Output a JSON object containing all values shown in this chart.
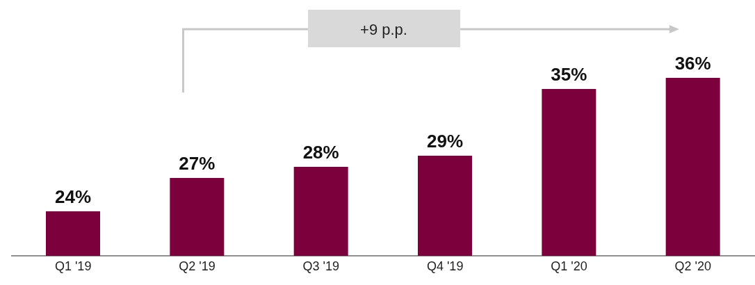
{
  "chart_data": {
    "type": "bar",
    "categories": [
      "Q1 '19",
      "Q2 '19",
      "Q3 '19",
      "Q4 '19",
      "Q1 '20",
      "Q2 '20"
    ],
    "values": [
      24,
      27,
      28,
      29,
      35,
      36
    ],
    "value_labels": [
      "24%",
      "27%",
      "28%",
      "29%",
      "35%",
      "36%"
    ],
    "color": "#7b003c",
    "ylim": [
      20,
      42
    ],
    "annotations": [
      "+9 p.p."
    ]
  }
}
